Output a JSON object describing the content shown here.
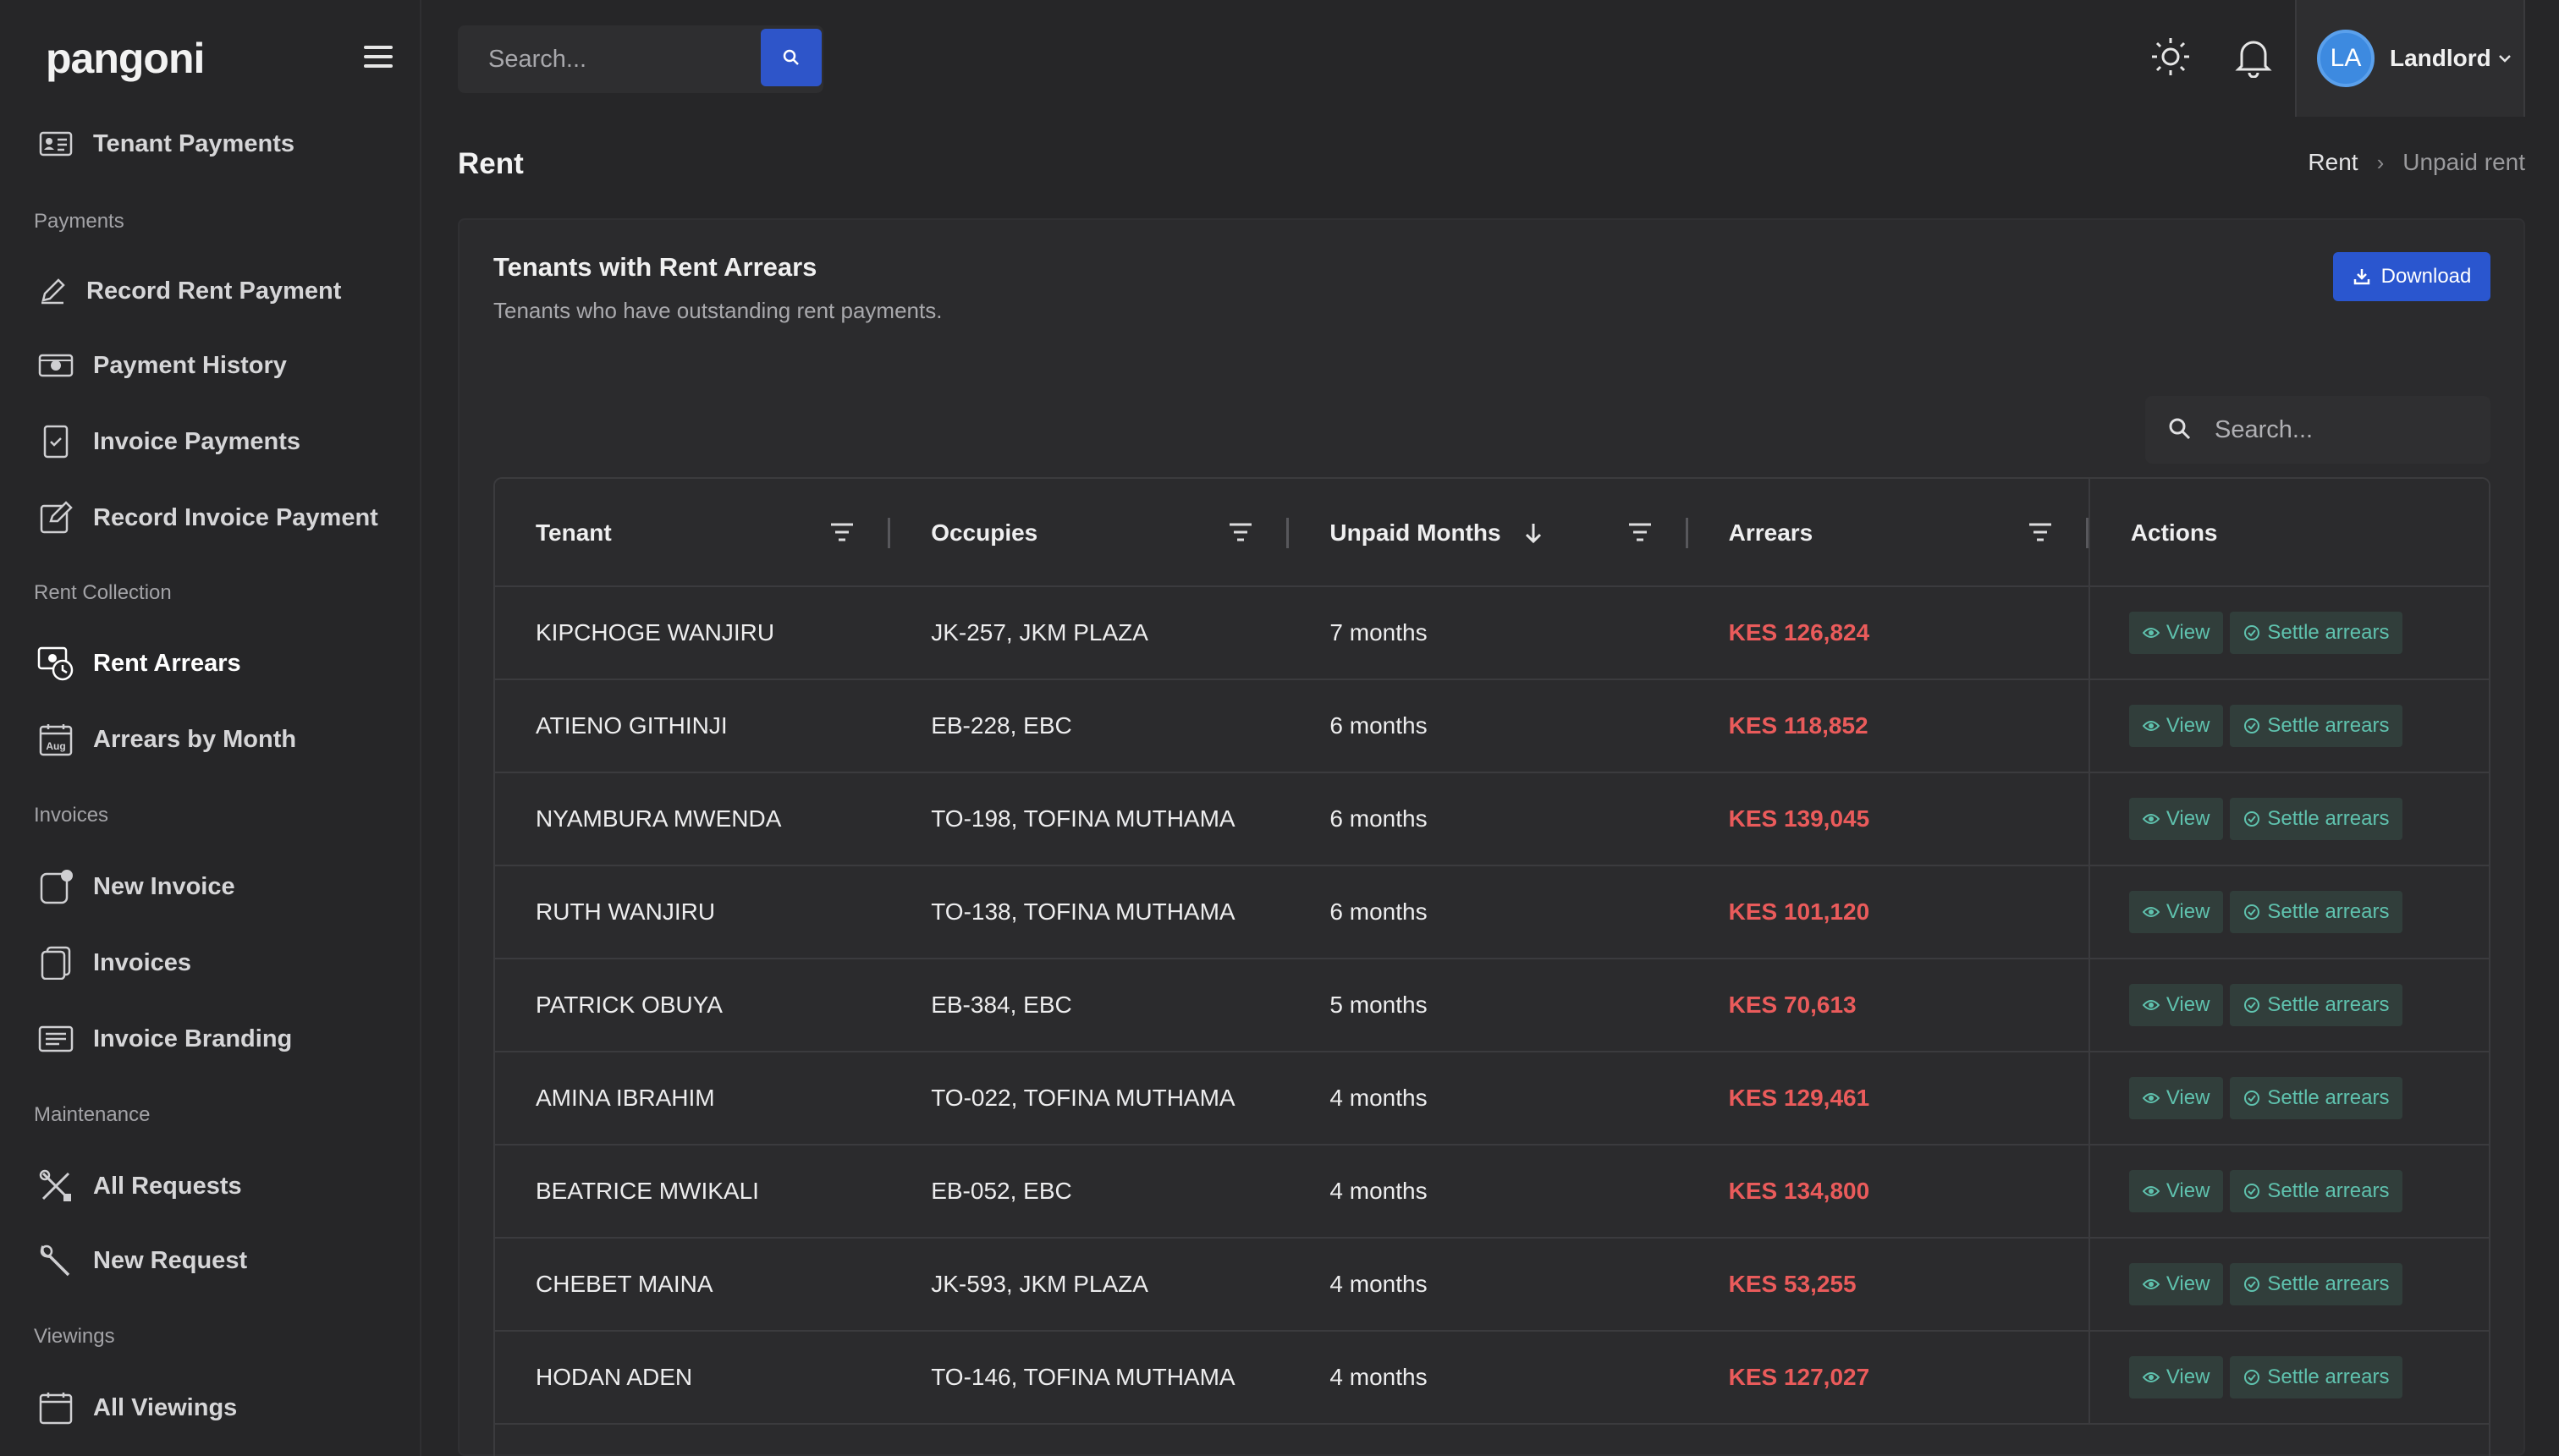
{
  "app": {
    "brand": "pangoni"
  },
  "sidebar": {
    "items": [
      {
        "label": "Tenant Payments",
        "icon": "id-card-icon"
      },
      {
        "label": "Record Rent Payment",
        "icon": "pen-icon"
      },
      {
        "label": "Payment History",
        "icon": "cash-icon"
      },
      {
        "label": "Invoice Payments",
        "icon": "checked-doc-icon"
      },
      {
        "label": "Record Invoice Payment",
        "icon": "edit-square-icon"
      },
      {
        "label": "Rent Arrears",
        "icon": "money-clock-icon",
        "active": true
      },
      {
        "label": "Arrears by Month",
        "icon": "calendar-aug-icon"
      },
      {
        "label": "New Invoice",
        "icon": "new-doc-icon"
      },
      {
        "label": "Invoices",
        "icon": "invoices-icon"
      },
      {
        "label": "Invoice Branding",
        "icon": "branding-icon"
      },
      {
        "label": "All Requests",
        "icon": "tools-icon"
      },
      {
        "label": "New Request",
        "icon": "wrench-icon"
      },
      {
        "label": "All Viewings",
        "icon": "calendar-icon"
      }
    ],
    "sections": [
      "Payments",
      "Rent Collection",
      "Invoices",
      "Maintenance",
      "Viewings"
    ]
  },
  "topbar": {
    "search_placeholder": "Search...",
    "user_initials": "LA",
    "user_name": "Landlord"
  },
  "page": {
    "title": "Rent",
    "breadcrumb": [
      "Rent",
      "Unpaid rent"
    ]
  },
  "card": {
    "title": "Tenants with Rent Arrears",
    "subtitle": "Tenants who have outstanding rent payments.",
    "download_label": "Download",
    "search_placeholder": "Search..."
  },
  "table": {
    "columns": [
      "Tenant",
      "Occupies",
      "Unpaid Months",
      "Arrears",
      "Actions"
    ],
    "view_label": "View",
    "settle_label": "Settle arrears",
    "rows": [
      {
        "tenant": "KIPCHOGE WANJIRU",
        "occupies": "JK-257, JKM PLAZA",
        "months": "7 months",
        "arrears": "KES 126,824"
      },
      {
        "tenant": "ATIENO GITHINJI",
        "occupies": "EB-228, EBC",
        "months": "6 months",
        "arrears": "KES 118,852"
      },
      {
        "tenant": "NYAMBURA MWENDA",
        "occupies": "TO-198, TOFINA MUTHAMA",
        "months": "6 months",
        "arrears": "KES 139,045"
      },
      {
        "tenant": "RUTH WANJIRU",
        "occupies": "TO-138, TOFINA MUTHAMA",
        "months": "6 months",
        "arrears": "KES 101,120"
      },
      {
        "tenant": "PATRICK OBUYA",
        "occupies": "EB-384, EBC",
        "months": "5 months",
        "arrears": "KES 70,613"
      },
      {
        "tenant": "AMINA IBRAHIM",
        "occupies": "TO-022, TOFINA MUTHAMA",
        "months": "4 months",
        "arrears": "KES 129,461"
      },
      {
        "tenant": "BEATRICE MWIKALI",
        "occupies": "EB-052, EBC",
        "months": "4 months",
        "arrears": "KES 134,800"
      },
      {
        "tenant": "CHEBET MAINA",
        "occupies": "JK-593, JKM PLAZA",
        "months": "4 months",
        "arrears": "KES 53,255"
      },
      {
        "tenant": "HODAN ADEN",
        "occupies": "TO-146, TOFINA MUTHAMA",
        "months": "4 months",
        "arrears": "KES 127,027"
      }
    ]
  },
  "colors": {
    "accent": "#2a56cf",
    "arrears": "#ea5b5b",
    "action": "#5fc2ae"
  }
}
